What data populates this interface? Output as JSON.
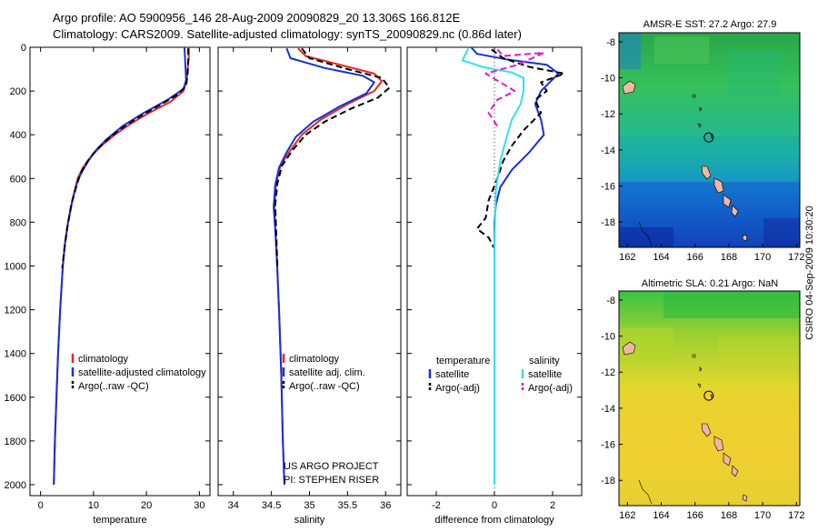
{
  "header": {
    "line1": "Argo profile: AO 5900956_146 28-Aug-2009 20090829_20 13.306S 166.812E",
    "line2": "Climatology: CARS2009. Satellite-adjusted climatology: synTS_20090829.nc (0.86d later)"
  },
  "side_label": "CSIRO 04-Sep-2009 10:30:20",
  "colors": {
    "climatology": "#e8271f",
    "satellite": "#1432d8",
    "argo": "#000000",
    "satellite_salinity": "#35dff0",
    "argo_salinity": "#e21ad0"
  },
  "chart_data": [
    {
      "type": "line",
      "name": "temperature-panel",
      "xlabel": "temperature",
      "xlim": [
        -2,
        32
      ],
      "ylim": [
        2050,
        0
      ],
      "xticks": [
        "0",
        "10",
        "20",
        "30"
      ],
      "xtick_values": [
        0,
        10,
        20,
        30
      ],
      "yticks": [
        "0",
        "200",
        "400",
        "600",
        "800",
        "1000",
        "1200",
        "1400",
        "1600",
        "1800",
        "2000"
      ],
      "ytick_values": [
        0,
        200,
        400,
        600,
        800,
        1000,
        1200,
        1400,
        1600,
        1800,
        2000
      ],
      "legend": [
        "climatology",
        "satellite-adjusted climatology",
        "Argo(..raw -QC)"
      ],
      "series": [
        {
          "name": "climatology",
          "color": "climatology",
          "dash": false,
          "points": [
            [
              28.0,
              0
            ],
            [
              28.0,
              50
            ],
            [
              27.8,
              100
            ],
            [
              27.6,
              150
            ],
            [
              27.0,
              200
            ],
            [
              24.5,
              250
            ],
            [
              20.5,
              300
            ],
            [
              17.0,
              350
            ],
            [
              14.0,
              400
            ],
            [
              11.5,
              450
            ],
            [
              9.5,
              500
            ],
            [
              8.0,
              550
            ],
            [
              7.0,
              600
            ],
            [
              6.0,
              700
            ],
            [
              5.2,
              800
            ],
            [
              4.6,
              900
            ],
            [
              4.2,
              1000
            ],
            [
              3.7,
              1200
            ],
            [
              3.3,
              1400
            ],
            [
              3.0,
              1600
            ],
            [
              2.7,
              1800
            ],
            [
              2.5,
              2000
            ]
          ]
        },
        {
          "name": "satellite-adjusted climatology",
          "color": "satellite",
          "dash": false,
          "points": [
            [
              27.2,
              0
            ],
            [
              27.3,
              50
            ],
            [
              27.4,
              100
            ],
            [
              27.5,
              150
            ],
            [
              27.0,
              190
            ],
            [
              24.0,
              240
            ],
            [
              19.5,
              300
            ],
            [
              15.5,
              360
            ],
            [
              12.5,
              420
            ],
            [
              10.5,
              470
            ],
            [
              9.0,
              520
            ],
            [
              7.8,
              570
            ],
            [
              7.0,
              610
            ],
            [
              6.0,
              700
            ],
            [
              5.2,
              800
            ],
            [
              4.6,
              900
            ],
            [
              4.2,
              1000
            ],
            [
              3.7,
              1200
            ],
            [
              3.3,
              1400
            ],
            [
              3.0,
              1600
            ],
            [
              2.7,
              1800
            ],
            [
              2.5,
              2000
            ]
          ]
        },
        {
          "name": "Argo(..raw -QC)",
          "color": "argo",
          "dash": true,
          "points": [
            [
              27.9,
              5
            ],
            [
              27.9,
              60
            ],
            [
              27.8,
              120
            ],
            [
              27.5,
              175
            ],
            [
              26.0,
              215
            ],
            [
              22.5,
              265
            ],
            [
              18.5,
              320
            ],
            [
              15.0,
              375
            ],
            [
              12.0,
              435
            ],
            [
              10.0,
              485
            ],
            [
              8.5,
              535
            ],
            [
              7.5,
              580
            ],
            [
              6.7,
              640
            ],
            [
              5.8,
              720
            ],
            [
              5.0,
              830
            ],
            [
              4.5,
              920
            ],
            [
              4.1,
              1010
            ]
          ]
        }
      ]
    },
    {
      "type": "line",
      "name": "salinity-panel",
      "xlabel": "salinity",
      "xlim": [
        33.8,
        36.2
      ],
      "ylim": [
        2050,
        0
      ],
      "xticks": [
        "34",
        "34.5",
        "35",
        "35.5",
        "36"
      ],
      "xtick_values": [
        34,
        34.5,
        35,
        35.5,
        36
      ],
      "legend": [
        "climatology",
        "satellite adj. clim.",
        "Argo(..raw -QC)"
      ],
      "annotation": [
        "US ARGO PROJECT",
        "PI: STEPHEN RISER"
      ],
      "series": [
        {
          "name": "climatology",
          "color": "climatology",
          "dash": false,
          "points": [
            [
              34.85,
              5
            ],
            [
              34.95,
              40
            ],
            [
              35.4,
              80
            ],
            [
              35.85,
              120
            ],
            [
              35.95,
              155
            ],
            [
              35.85,
              200
            ],
            [
              35.5,
              260
            ],
            [
              35.15,
              330
            ],
            [
              34.9,
              400
            ],
            [
              34.75,
              470
            ],
            [
              34.62,
              540
            ],
            [
              34.56,
              620
            ],
            [
              34.54,
              720
            ],
            [
              34.55,
              820
            ],
            [
              34.57,
              950
            ],
            [
              34.6,
              1200
            ],
            [
              34.63,
              1500
            ],
            [
              34.65,
              1800
            ],
            [
              34.67,
              2000
            ]
          ]
        },
        {
          "name": "satellite adj. clim.",
          "color": "satellite",
          "dash": false,
          "points": [
            [
              34.7,
              5
            ],
            [
              34.75,
              50
            ],
            [
              35.2,
              95
            ],
            [
              35.7,
              130
            ],
            [
              35.85,
              160
            ],
            [
              35.75,
              210
            ],
            [
              35.4,
              270
            ],
            [
              35.05,
              340
            ],
            [
              34.82,
              410
            ],
            [
              34.7,
              480
            ],
            [
              34.6,
              550
            ],
            [
              34.55,
              630
            ],
            [
              34.53,
              730
            ],
            [
              34.55,
              830
            ],
            [
              34.57,
              960
            ],
            [
              34.6,
              1200
            ],
            [
              34.63,
              1500
            ],
            [
              34.65,
              1800
            ],
            [
              34.67,
              2000
            ]
          ]
        },
        {
          "name": "Argo(..raw -QC)",
          "color": "argo",
          "dash": true,
          "points": [
            [
              34.9,
              5
            ],
            [
              35.0,
              50
            ],
            [
              35.5,
              100
            ],
            [
              35.95,
              140
            ],
            [
              36.05,
              185
            ],
            [
              35.9,
              230
            ],
            [
              35.55,
              280
            ],
            [
              35.2,
              340
            ],
            [
              34.95,
              400
            ],
            [
              34.78,
              470
            ],
            [
              34.64,
              540
            ],
            [
              34.58,
              620
            ],
            [
              34.55,
              720
            ],
            [
              34.56,
              820
            ],
            [
              34.57,
              920
            ],
            [
              34.58,
              1010
            ]
          ]
        }
      ]
    },
    {
      "type": "line",
      "name": "difference-panel",
      "xlabel": "difference from climatology",
      "xlim": [
        -3,
        3
      ],
      "ylim": [
        2050,
        0
      ],
      "xticks": [
        "-2",
        "0",
        "2"
      ],
      "xtick_values": [
        -2,
        0,
        2
      ],
      "legend_headings": [
        "temperature",
        "salinity"
      ],
      "legend_left": [
        "satellite",
        "Argo(-adj)"
      ],
      "legend_right": [
        "satellite",
        "Argo(-adj)"
      ],
      "series": [
        {
          "name": "temperature satellite",
          "color": "satellite",
          "dash": false,
          "points": [
            [
              -0.8,
              0
            ],
            [
              -0.6,
              30
            ],
            [
              0.4,
              55
            ],
            [
              1.8,
              80
            ],
            [
              2.2,
              120
            ],
            [
              1.6,
              200
            ],
            [
              1.4,
              260
            ],
            [
              1.6,
              330
            ],
            [
              1.7,
              400
            ],
            [
              1.2,
              480
            ],
            [
              0.6,
              560
            ],
            [
              0.2,
              640
            ],
            [
              0.05,
              720
            ],
            [
              0,
              800
            ],
            [
              0,
              2000
            ]
          ]
        },
        {
          "name": "temperature Argo(-adj)",
          "color": "argo",
          "dash": true,
          "points": [
            [
              -0.1,
              10
            ],
            [
              0.3,
              50
            ],
            [
              1.2,
              90
            ],
            [
              2.4,
              120
            ],
            [
              1.6,
              160
            ],
            [
              1.8,
              200
            ],
            [
              1.4,
              240
            ],
            [
              1.6,
              300
            ],
            [
              1.0,
              380
            ],
            [
              0.6,
              450
            ],
            [
              0.3,
              520
            ],
            [
              0.1,
              600
            ],
            [
              -0.2,
              700
            ],
            [
              -0.3,
              780
            ],
            [
              -0.6,
              830
            ],
            [
              -0.2,
              870
            ],
            [
              0,
              920
            ]
          ]
        },
        {
          "name": "salinity satellite",
          "color": "satellite_salinity",
          "dash": false,
          "points": [
            [
              -0.9,
              5
            ],
            [
              -1.1,
              60
            ],
            [
              -0.4,
              90
            ],
            [
              0.6,
              115
            ],
            [
              1.0,
              140
            ],
            [
              1.0,
              200
            ],
            [
              0.9,
              260
            ],
            [
              0.6,
              330
            ],
            [
              0.4,
              420
            ],
            [
              0.2,
              520
            ],
            [
              0.05,
              650
            ],
            [
              0,
              900
            ],
            [
              0,
              2000
            ]
          ]
        },
        {
          "name": "salinity Argo(-adj)",
          "color": "argo_salinity",
          "dash": true,
          "points": [
            [
              0.1,
              10
            ],
            [
              0.3,
              40
            ],
            [
              1.7,
              25
            ],
            [
              0.8,
              80
            ],
            [
              -0.3,
              120
            ],
            [
              0.2,
              160
            ],
            [
              0.7,
              200
            ],
            [
              0.1,
              240
            ],
            [
              -0.2,
              300
            ],
            [
              0.1,
              360
            ]
          ]
        }
      ]
    },
    {
      "type": "heatmap",
      "name": "sst-map",
      "title": "AMSR-E SST: 27.2 Argo: 27.9",
      "xticks": [
        "162",
        "164",
        "166",
        "168",
        "170",
        "172"
      ],
      "xtick_values": [
        162,
        164,
        166,
        168,
        170,
        172
      ],
      "yticks": [
        "-8",
        "-10",
        "-12",
        "-14",
        "-16",
        "-18"
      ],
      "ytick_values": [
        -8,
        -10,
        -12,
        -14,
        -16,
        -18
      ],
      "xlim": [
        161.5,
        172.2
      ],
      "ylim": [
        -19.4,
        -7.5
      ],
      "argo_position": [
        166.812,
        -13.306
      ]
    },
    {
      "type": "heatmap",
      "name": "sla-map",
      "title": "Altimetric SLA: 0.21 Argo: NaN",
      "xticks": [
        "162",
        "164",
        "166",
        "168",
        "170",
        "172"
      ],
      "xtick_values": [
        162,
        164,
        166,
        168,
        170,
        172
      ],
      "yticks": [
        "-8",
        "-10",
        "-12",
        "-14",
        "-16",
        "-18"
      ],
      "ytick_values": [
        -8,
        -10,
        -12,
        -14,
        -16,
        -18
      ],
      "xlim": [
        161.5,
        172.2
      ],
      "ylim": [
        -19.4,
        -7.5
      ],
      "argo_position": [
        166.812,
        -13.306
      ]
    }
  ]
}
